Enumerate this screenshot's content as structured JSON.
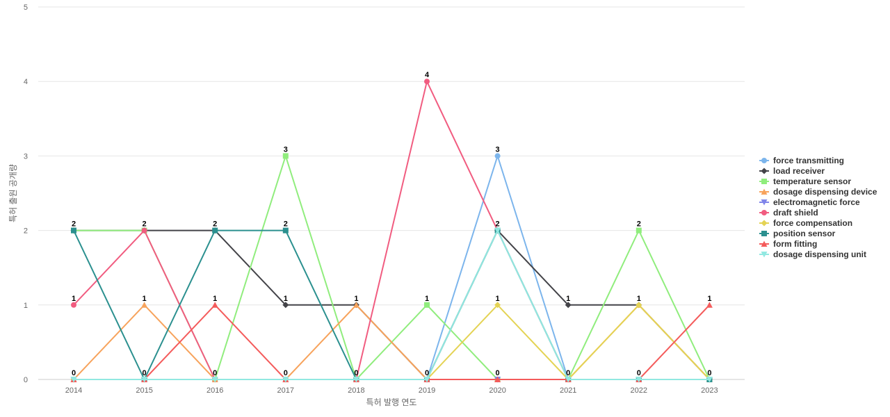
{
  "chart_data": {
    "type": "line",
    "x": [
      "2014",
      "2015",
      "2016",
      "2017",
      "2018",
      "2019",
      "2020",
      "2021",
      "2022",
      "2023"
    ],
    "xlabel": "특허 발행 연도",
    "ylabel": "특허 출원 공개량",
    "ylim": [
      0,
      5
    ],
    "yticks": [
      0,
      1,
      2,
      3,
      4,
      5
    ],
    "grid": true,
    "legend_position": "right",
    "series": [
      {
        "name": "force transmitting",
        "color": "#7cb5ec",
        "marker": "circle",
        "values": [
          0,
          0,
          0,
          0,
          0,
          0,
          3,
          0,
          0,
          0
        ]
      },
      {
        "name": "load receiver",
        "color": "#434348",
        "marker": "diamond",
        "values": [
          2,
          2,
          2,
          1,
          1,
          0,
          2,
          1,
          1,
          0
        ]
      },
      {
        "name": "temperature sensor",
        "color": "#90ed7d",
        "marker": "square",
        "values": [
          2,
          2,
          0,
          3,
          0,
          1,
          0,
          0,
          2,
          0
        ]
      },
      {
        "name": "dosage dispensing device",
        "color": "#f7a35c",
        "marker": "triangle",
        "values": [
          0,
          1,
          0,
          0,
          1,
          0,
          0,
          0,
          1,
          0
        ]
      },
      {
        "name": "electromagnetic force",
        "color": "#8085e9",
        "marker": "triangle-down",
        "values": [
          0,
          0,
          0,
          0,
          0,
          0,
          0,
          0,
          0,
          0
        ]
      },
      {
        "name": "draft shield",
        "color": "#f15c80",
        "marker": "circle",
        "values": [
          1,
          2,
          0,
          0,
          0,
          4,
          2,
          0,
          0,
          0
        ]
      },
      {
        "name": "force compensation",
        "color": "#e4d354",
        "marker": "diamond",
        "values": [
          0,
          0,
          0,
          0,
          0,
          0,
          1,
          0,
          1,
          0
        ]
      },
      {
        "name": "position sensor",
        "color": "#2b908f",
        "marker": "square",
        "values": [
          2,
          0,
          2,
          2,
          0,
          0,
          2,
          0,
          0,
          0
        ]
      },
      {
        "name": "form fitting",
        "color": "#f45b5b",
        "marker": "triangle",
        "values": [
          0,
          0,
          1,
          0,
          0,
          0,
          0,
          0,
          0,
          1
        ]
      },
      {
        "name": "dosage dispensing unit",
        "color": "#91e8e1",
        "marker": "triangle-down",
        "values": [
          0,
          0,
          0,
          0,
          0,
          0,
          2,
          0,
          0,
          0
        ]
      }
    ],
    "data_labels": [
      {
        "x": "2014",
        "values": [
          0,
          1,
          2
        ]
      },
      {
        "x": "2015",
        "values": [
          0,
          1,
          2
        ]
      },
      {
        "x": "2016",
        "values": [
          0,
          1,
          2
        ]
      },
      {
        "x": "2017",
        "values": [
          0,
          1,
          2,
          3
        ]
      },
      {
        "x": "2018",
        "values": [
          0,
          1
        ]
      },
      {
        "x": "2019",
        "values": [
          0,
          1,
          4
        ]
      },
      {
        "x": "2020",
        "values": [
          0,
          1,
          2,
          3
        ]
      },
      {
        "x": "2021",
        "values": [
          0,
          1
        ]
      },
      {
        "x": "2022",
        "values": [
          0,
          1,
          2
        ]
      },
      {
        "x": "2023",
        "values": [
          0,
          1
        ]
      }
    ]
  }
}
